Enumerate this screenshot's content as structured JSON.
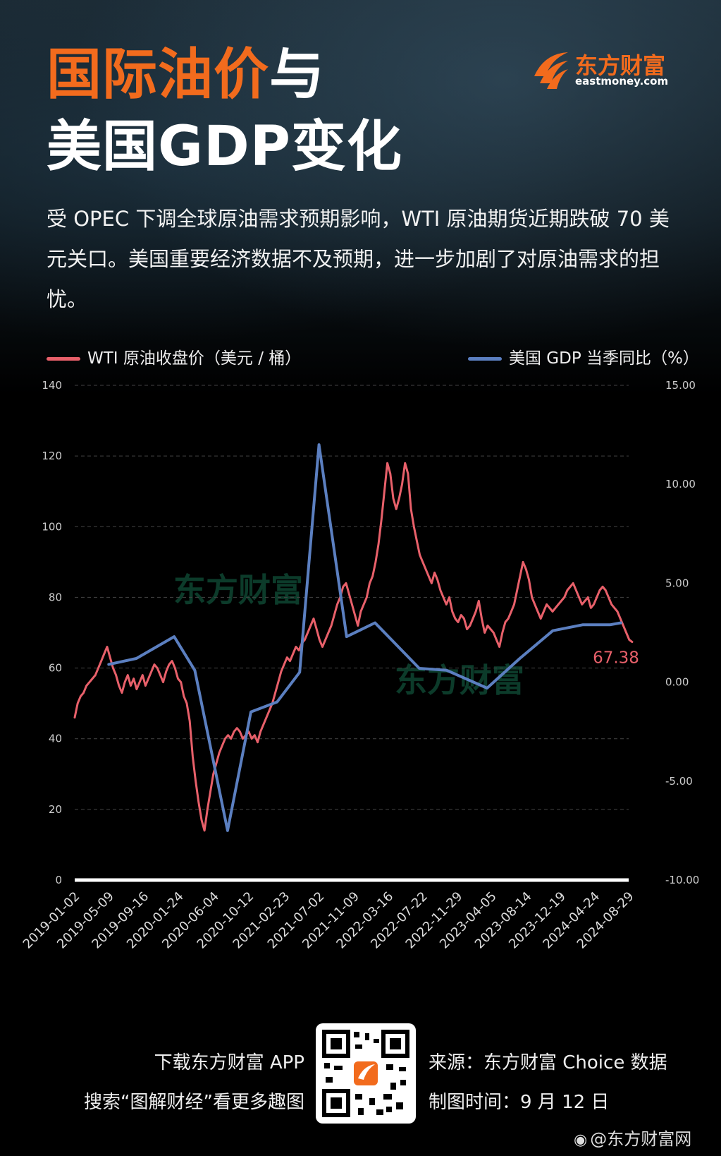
{
  "header": {
    "title_line1_orange": "国际油价",
    "title_line1_white": "与",
    "title_line2": "美国GDP变化",
    "logo_text": "东方财富",
    "logo_sub": "eastmoney.com"
  },
  "description": "受 OPEC 下调全球原油需求预期影响，WTI 原油期货近期跌破 70 美元关口。美国重要经济数据不及预期，进一步加剧了对原油需求的担忧。",
  "legend": {
    "wti": "WTI 原油收盘价（美元 / 桶）",
    "gdp": "美国 GDP 当季同比（%）"
  },
  "colors": {
    "wti": "#e8606a",
    "gdp": "#5b7fc0",
    "accent": "#f26b1d"
  },
  "chart_data": {
    "type": "line",
    "x_ticks": [
      "2019-01-02",
      "2019-05-09",
      "2019-09-16",
      "2020-01-24",
      "2020-06-04",
      "2020-10-12",
      "2021-02-23",
      "2021-07-02",
      "2021-11-09",
      "2022-03-16",
      "2022-07-22",
      "2022-11-29",
      "2023-04-05",
      "2023-08-14",
      "2023-12-19",
      "2024-04-24",
      "2024-08-29"
    ],
    "y_left_ticks": [
      "0",
      "20",
      "40",
      "60",
      "80",
      "100",
      "120",
      "140"
    ],
    "y_left_range": [
      0,
      140
    ],
    "y_right_ticks": [
      "-10.00",
      "-5.00",
      "0.00",
      "5.00",
      "10.00",
      "15.00"
    ],
    "y_right_range": [
      -10,
      15
    ],
    "last_value_label": "67.38",
    "watermark": "东方财富",
    "series": [
      {
        "name": "WTI 原油收盘价（美元 / 桶）",
        "axis": "left",
        "x_range": [
          "2019-01-02",
          "2024-09-11"
        ],
        "values": [
          46,
          50,
          52,
          53,
          55,
          56,
          57,
          58,
          60,
          62,
          64,
          66,
          63,
          60,
          58,
          55,
          53,
          56,
          58,
          55,
          57,
          54,
          56,
          58,
          55,
          57,
          59,
          61,
          60,
          58,
          56,
          59,
          61,
          62,
          60,
          57,
          56,
          52,
          50,
          45,
          35,
          28,
          22,
          17,
          14,
          20,
          25,
          30,
          33,
          36,
          38,
          40,
          41,
          40,
          42,
          43,
          42,
          40,
          41,
          42,
          40,
          41,
          39,
          42,
          44,
          46,
          48,
          50,
          53,
          56,
          59,
          61,
          63,
          62,
          64,
          66,
          65,
          67,
          68,
          70,
          72,
          74,
          71,
          68,
          66,
          68,
          70,
          72,
          75,
          78,
          80,
          83,
          84,
          81,
          78,
          75,
          72,
          76,
          78,
          80,
          84,
          86,
          90,
          95,
          102,
          110,
          118,
          115,
          108,
          105,
          108,
          112,
          118,
          115,
          105,
          100,
          96,
          92,
          90,
          88,
          86,
          84,
          87,
          85,
          82,
          80,
          78,
          80,
          76,
          74,
          73,
          75,
          74,
          71,
          72,
          74,
          76,
          79,
          74,
          70,
          72,
          71,
          70,
          68,
          66,
          70,
          73,
          74,
          76,
          78,
          82,
          86,
          90,
          88,
          85,
          80,
          78,
          76,
          74,
          76,
          78,
          77,
          76,
          77,
          78,
          79,
          80,
          82,
          83,
          84,
          82,
          80,
          78,
          79,
          80,
          77,
          78,
          80,
          82,
          83,
          82,
          80,
          78,
          77,
          76,
          74,
          72,
          70,
          68,
          67.38
        ]
      },
      {
        "name": "美国 GDP 当季同比（%）",
        "axis": "right",
        "x": [
          "2019-05-09",
          "2019-08-20",
          "2020-01-08",
          "2020-03-25",
          "2020-07-25",
          "2020-10-20",
          "2021-01-26",
          "2021-04-20",
          "2021-07-01",
          "2021-10-12",
          "2022-01-26",
          "2022-07-10",
          "2022-10-20",
          "2023-03-20",
          "2023-07-20",
          "2023-11-20",
          "2024-03-10",
          "2024-06-20",
          "2024-07-31"
        ],
        "values": [
          0.9,
          1.2,
          2.3,
          0.6,
          -7.5,
          -1.5,
          -1.0,
          0.5,
          12.0,
          2.3,
          3.0,
          0.7,
          0.6,
          -0.3,
          1.2,
          2.6,
          2.9,
          2.9,
          3.0
        ]
      }
    ]
  },
  "footer": {
    "left_line1": "下载东方财富 APP",
    "left_line2": "搜索“图解财经”看更多趣图",
    "right_line1": "来源：东方财富 Choice 数据",
    "right_line2": "制图时间：9 月 12 日",
    "weibo": "@东方财富网"
  }
}
